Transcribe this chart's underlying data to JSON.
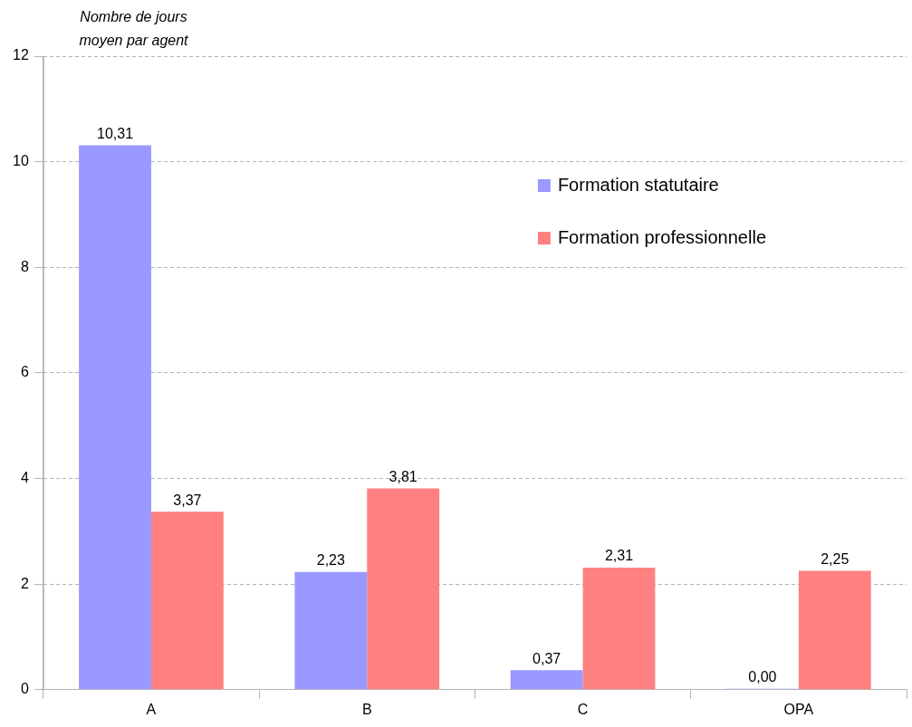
{
  "chart_data": {
    "type": "bar",
    "ylabel": "Nombre de jours moyen par agent",
    "categories": [
      "A",
      "B",
      "C",
      "OPA"
    ],
    "series": [
      {
        "name": "Formation statutaire",
        "color": "#9999ff",
        "values": [
          10.31,
          2.23,
          0.37,
          0.0
        ],
        "value_labels": [
          "10,31",
          "2,23",
          "0,37",
          "0,00"
        ]
      },
      {
        "name": "Formation professionnelle",
        "color": "#ff8080",
        "values": [
          3.37,
          3.81,
          2.31,
          2.25
        ],
        "value_labels": [
          "3,37",
          "3,81",
          "2,31",
          "2,25"
        ]
      }
    ],
    "ylim": [
      0,
      12
    ],
    "yticks": [
      0,
      2,
      4,
      6,
      8,
      10,
      12
    ],
    "grid": "y",
    "legend": "top right"
  }
}
